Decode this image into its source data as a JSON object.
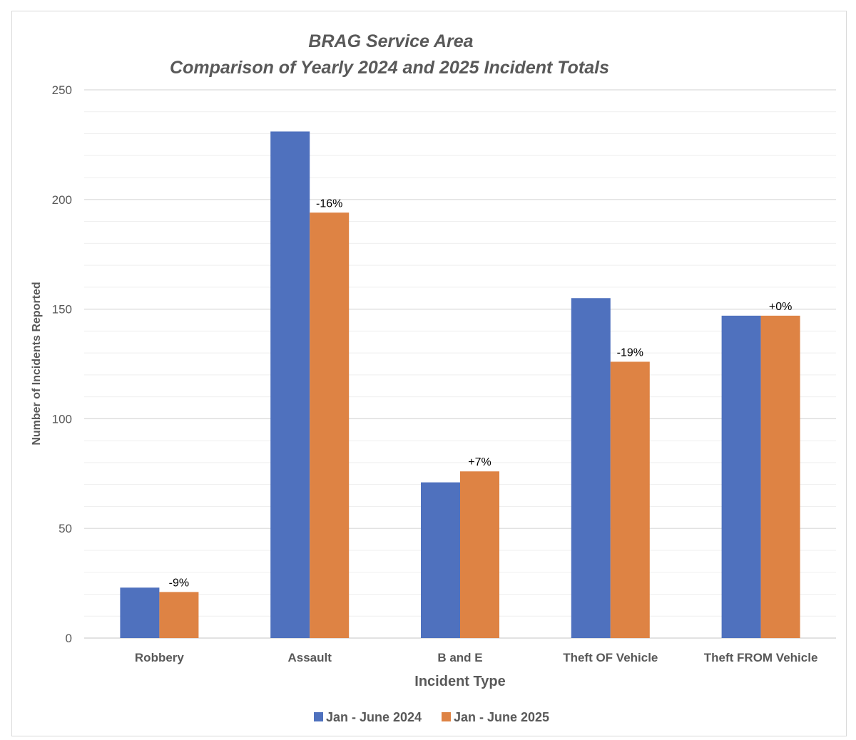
{
  "chart_data": {
    "type": "bar",
    "title": [
      "BRAG Service  Area",
      "Comparison of Yearly 2024 and 2025 Incident Totals"
    ],
    "xlabel": "Incident Type",
    "ylabel": "Number of Incidents Reported",
    "categories": [
      "Robbery",
      "Assault",
      "B and E",
      "Theft OF Vehicle",
      "Theft FROM Vehicle"
    ],
    "series": [
      {
        "name": "Jan - June 2024",
        "color": "#4f71be",
        "values": [
          23,
          231,
          71,
          155,
          147
        ]
      },
      {
        "name": "Jan - June 2025",
        "color": "#de8344",
        "values": [
          21,
          194,
          76,
          126,
          147
        ]
      }
    ],
    "data_labels": [
      "-9%",
      "-16%",
      "+7%",
      "-19%",
      "+0%"
    ],
    "ylim": [
      0,
      250
    ],
    "yticks": [
      0,
      50,
      100,
      150,
      200,
      250
    ],
    "minor_step": 10,
    "grid": true,
    "legend_position": "bottom"
  }
}
